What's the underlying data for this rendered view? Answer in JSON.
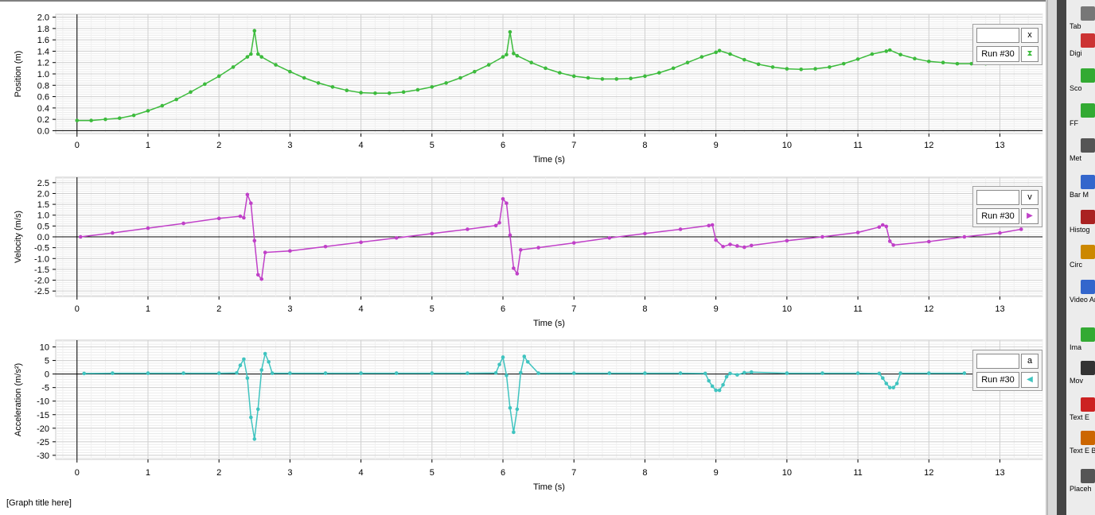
{
  "graph_title": "[Graph title here]",
  "palette": {
    "items": [
      {
        "label": "Tab",
        "icon": "table-icon"
      },
      {
        "label": "Digi",
        "icon": "digits-icon"
      },
      {
        "label": "Sco",
        "icon": "scope-icon"
      },
      {
        "label": "FF",
        "icon": "fft-icon"
      },
      {
        "label": "Met",
        "icon": "meter-icon"
      },
      {
        "label": "Bar M",
        "icon": "bar-meter-icon"
      },
      {
        "label": "Histog",
        "icon": "histogram-icon"
      },
      {
        "label": "Circ",
        "icon": "circuit-icon"
      },
      {
        "label": "Video Analy",
        "icon": "video-analysis-icon"
      },
      {
        "label": "Ima",
        "icon": "image-icon"
      },
      {
        "label": "Mov",
        "icon": "movie-icon"
      },
      {
        "label": "Text E",
        "icon": "text-icon"
      },
      {
        "label": "Text E Bo",
        "icon": "text-box-icon"
      },
      {
        "label": "Placeh",
        "icon": "placeholder-icon"
      }
    ]
  },
  "legends": [
    {
      "variable": "x",
      "run": "Run #30",
      "symbol": "⧗",
      "color": "#3dbb3d"
    },
    {
      "variable": "v",
      "run": "Run #30",
      "symbol": "▶",
      "color": "#c040c8"
    },
    {
      "variable": "a",
      "run": "Run #30",
      "symbol": "◀",
      "color": "#40c4c0"
    }
  ],
  "chart_data": [
    {
      "type": "line",
      "ylabel": "Position (m)",
      "xlabel": "Time (s)",
      "xlim": [
        -0.3,
        13.6
      ],
      "ylim": [
        -0.05,
        2.05
      ],
      "yticks": [
        0.0,
        0.2,
        0.4,
        0.6,
        0.8,
        1.0,
        1.2,
        1.4,
        1.6,
        1.8,
        2.0
      ],
      "ytick_labels": [
        "0.0",
        "0.2",
        "0.4",
        "0.6",
        "0.8",
        "1.0",
        "1.2",
        "1.4",
        "1.6",
        "1.8",
        "2.0"
      ],
      "xticks": [
        0,
        1,
        2,
        3,
        4,
        5,
        6,
        7,
        8,
        9,
        10,
        11,
        12,
        13
      ],
      "color": "#3dbb3d",
      "grid": true,
      "series": [
        {
          "x": [
            0,
            0.2,
            0.4,
            0.6,
            0.8,
            1.0,
            1.2,
            1.4,
            1.6,
            1.8,
            2.0,
            2.2,
            2.4,
            2.45,
            2.5,
            2.55,
            2.6,
            2.8,
            3.0,
            3.2,
            3.4,
            3.6,
            3.8,
            4.0,
            4.2,
            4.4,
            4.6,
            4.8,
            5.0,
            5.2,
            5.4,
            5.6,
            5.8,
            6.0,
            6.05,
            6.1,
            6.15,
            6.2,
            6.4,
            6.6,
            6.8,
            7.0,
            7.2,
            7.4,
            7.6,
            7.8,
            8.0,
            8.2,
            8.4,
            8.6,
            8.8,
            9.0,
            9.05,
            9.2,
            9.4,
            9.6,
            9.8,
            10.0,
            10.2,
            10.4,
            10.6,
            10.8,
            11.0,
            11.2,
            11.4,
            11.45,
            11.6,
            11.8,
            12.0,
            12.2,
            12.4,
            12.6,
            12.8
          ],
          "y": [
            0.18,
            0.18,
            0.2,
            0.22,
            0.27,
            0.35,
            0.44,
            0.55,
            0.68,
            0.82,
            0.96,
            1.12,
            1.3,
            1.35,
            1.76,
            1.35,
            1.3,
            1.16,
            1.04,
            0.93,
            0.84,
            0.77,
            0.71,
            0.67,
            0.66,
            0.66,
            0.68,
            0.72,
            0.77,
            0.84,
            0.93,
            1.04,
            1.16,
            1.3,
            1.34,
            1.74,
            1.36,
            1.32,
            1.2,
            1.1,
            1.02,
            0.96,
            0.93,
            0.91,
            0.91,
            0.92,
            0.96,
            1.02,
            1.1,
            1.2,
            1.3,
            1.38,
            1.41,
            1.35,
            1.25,
            1.17,
            1.12,
            1.09,
            1.08,
            1.09,
            1.12,
            1.18,
            1.26,
            1.35,
            1.4,
            1.42,
            1.34,
            1.27,
            1.22,
            1.2,
            1.18,
            1.18,
            1.18
          ]
        }
      ]
    },
    {
      "type": "line",
      "ylabel": "Velocity (m/s)",
      "xlabel": "Time (s)",
      "xlim": [
        -0.3,
        13.6
      ],
      "ylim": [
        -2.75,
        2.75
      ],
      "yticks": [
        -2.5,
        -2.0,
        -1.5,
        -1.0,
        -0.5,
        0.0,
        0.5,
        1.0,
        1.5,
        2.0,
        2.5
      ],
      "ytick_labels": [
        "-2.5",
        "-2.0",
        "-1.5",
        "-1.0",
        "-0.5",
        "0.0",
        "0.5",
        "1.0",
        "1.5",
        "2.0",
        "2.5"
      ],
      "xticks": [
        0,
        1,
        2,
        3,
        4,
        5,
        6,
        7,
        8,
        9,
        10,
        11,
        12,
        13
      ],
      "color": "#c040c8",
      "grid": true,
      "series": [
        {
          "x": [
            0.05,
            0.5,
            1.0,
            1.5,
            2.0,
            2.3,
            2.35,
            2.4,
            2.45,
            2.5,
            2.55,
            2.6,
            2.65,
            3.0,
            3.5,
            4.0,
            4.5,
            5.0,
            5.5,
            5.9,
            5.95,
            6.0,
            6.05,
            6.1,
            6.15,
            6.2,
            6.25,
            6.5,
            7.0,
            7.5,
            8.0,
            8.5,
            8.9,
            8.95,
            9.0,
            9.1,
            9.2,
            9.3,
            9.4,
            9.5,
            10.0,
            10.5,
            11.0,
            11.3,
            11.35,
            11.4,
            11.45,
            11.5,
            12.0,
            12.5,
            13.0,
            13.3
          ],
          "y": [
            0.0,
            0.18,
            0.4,
            0.62,
            0.85,
            0.95,
            0.88,
            1.95,
            1.55,
            -0.18,
            -1.75,
            -1.95,
            -0.72,
            -0.65,
            -0.45,
            -0.25,
            -0.05,
            0.15,
            0.35,
            0.52,
            0.65,
            1.75,
            1.55,
            0.08,
            -1.45,
            -1.7,
            -0.6,
            -0.5,
            -0.28,
            -0.05,
            0.15,
            0.35,
            0.52,
            0.55,
            -0.15,
            -0.45,
            -0.35,
            -0.42,
            -0.48,
            -0.4,
            -0.18,
            0.0,
            0.2,
            0.45,
            0.55,
            0.48,
            -0.2,
            -0.38,
            -0.22,
            0.0,
            0.18,
            0.35
          ]
        }
      ]
    },
    {
      "type": "line",
      "ylabel": "Acceleration (m/s²)",
      "xlabel": "Time (s)",
      "xlim": [
        -0.3,
        13.6
      ],
      "ylim": [
        -31.5,
        12.5
      ],
      "yticks": [
        -30,
        -25,
        -20,
        -15,
        -10,
        -5,
        0,
        5,
        10
      ],
      "ytick_labels": [
        "-30",
        "-25",
        "-20",
        "-15",
        "-10",
        "-5",
        "0",
        "5",
        "10"
      ],
      "xticks": [
        0,
        1,
        2,
        3,
        4,
        5,
        6,
        7,
        8,
        9,
        10,
        11,
        12,
        13
      ],
      "color": "#40c4c0",
      "grid": true,
      "series": [
        {
          "x": [
            0.1,
            0.5,
            1.0,
            1.5,
            2.0,
            2.25,
            2.3,
            2.35,
            2.4,
            2.45,
            2.5,
            2.55,
            2.6,
            2.65,
            2.7,
            2.75,
            3.0,
            3.5,
            4.0,
            4.5,
            5.0,
            5.5,
            5.9,
            5.95,
            6.0,
            6.05,
            6.1,
            6.15,
            6.2,
            6.25,
            6.3,
            6.35,
            6.5,
            7.0,
            7.5,
            8.0,
            8.5,
            8.85,
            8.9,
            8.95,
            9.0,
            9.05,
            9.1,
            9.15,
            9.2,
            9.3,
            9.4,
            9.5,
            10.0,
            10.5,
            11.0,
            11.3,
            11.35,
            11.4,
            11.45,
            11.5,
            11.55,
            11.6,
            12.0,
            12.5
          ],
          "y": [
            0.2,
            0.3,
            0.3,
            0.3,
            0.3,
            0.4,
            3.2,
            5.5,
            -1.5,
            -16,
            -24,
            -13,
            1.5,
            7.5,
            4.5,
            0.3,
            0.3,
            0.3,
            0.3,
            0.3,
            0.3,
            0.3,
            0.4,
            3.5,
            6.2,
            -0.5,
            -12.5,
            -21.5,
            -13,
            0.5,
            6.5,
            4.5,
            0.3,
            0.3,
            0.3,
            0.3,
            0.3,
            0.2,
            -2.5,
            -4.5,
            -6,
            -6,
            -4,
            -1,
            0.2,
            -0.3,
            0.5,
            0.7,
            0.3,
            0.3,
            0.3,
            0.2,
            -1.5,
            -3.5,
            -5,
            -5,
            -3.5,
            0.3,
            0.3,
            0.3
          ]
        }
      ]
    }
  ]
}
